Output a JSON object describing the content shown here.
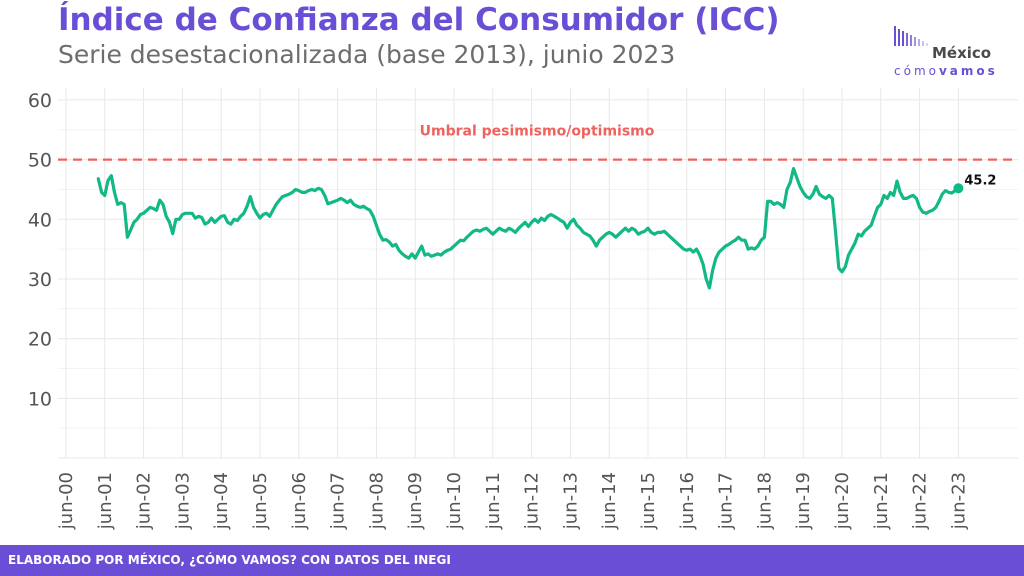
{
  "header": {
    "title": "Índice de Confianza del Consumidor (ICC)",
    "subtitle": "Serie desestacionalizada (base 2013), junio 2023"
  },
  "logo": {
    "main": "México",
    "sub_light": "cómo",
    "sub_bold": "vamos"
  },
  "footer": {
    "text": "ELABORADO POR MÉXICO, ¿CÓMO VAMOS? CON DATOS DEL INEGI"
  },
  "colors": {
    "accent": "#6a4fd6",
    "line": "#12b886",
    "threshold": "#f0625d",
    "grid": "#e8e8e8"
  },
  "chart_data": {
    "type": "line",
    "title": "Índice de Confianza del Consumidor (ICC)",
    "subtitle": "Serie desestacionalizada (base 2013), junio 2023",
    "xlabel": "",
    "ylabel": "",
    "y_ticks": [
      10,
      20,
      30,
      40,
      50,
      60
    ],
    "ylim": [
      0,
      62
    ],
    "x_ticks": [
      "jun-00",
      "jun-01",
      "jun-02",
      "jun-03",
      "jun-04",
      "jun-05",
      "jun-06",
      "jun-07",
      "jun-08",
      "jun-09",
      "jun-10",
      "jun-11",
      "jun-12",
      "jun-13",
      "jun-14",
      "jun-15",
      "jun-16",
      "jun-17",
      "jun-18",
      "jun-19",
      "jun-20",
      "jun-21",
      "jun-22",
      "jun-23"
    ],
    "grid": true,
    "threshold": {
      "value": 50,
      "label": "Umbral pesimismo/optimismo"
    },
    "last_label": "45.2",
    "series": [
      {
        "points": [
          [
            "2001-04",
            46.8
          ],
          [
            "2001-05",
            44.5
          ],
          [
            "2001-06",
            44.0
          ],
          [
            "2001-07",
            46.5
          ],
          [
            "2001-08",
            47.3
          ],
          [
            "2001-09",
            44.5
          ],
          [
            "2001-10",
            42.5
          ],
          [
            "2001-11",
            42.8
          ],
          [
            "2001-12",
            42.5
          ],
          [
            "2002-01",
            37.0
          ],
          [
            "2002-02",
            38.2
          ],
          [
            "2002-03",
            39.5
          ],
          [
            "2002-04",
            40.0
          ],
          [
            "2002-05",
            40.8
          ],
          [
            "2002-06",
            41.0
          ],
          [
            "2002-07",
            41.5
          ],
          [
            "2002-08",
            42.0
          ],
          [
            "2002-09",
            41.8
          ],
          [
            "2002-10",
            41.5
          ],
          [
            "2002-11",
            43.2
          ],
          [
            "2002-12",
            42.5
          ],
          [
            "2003-01",
            40.5
          ],
          [
            "2003-02",
            39.5
          ],
          [
            "2003-03",
            37.6
          ],
          [
            "2003-04",
            40.0
          ],
          [
            "2003-05",
            40.0
          ],
          [
            "2003-06",
            40.8
          ],
          [
            "2003-07",
            41.0
          ],
          [
            "2003-08",
            41.0
          ],
          [
            "2003-09",
            41.0
          ],
          [
            "2003-10",
            40.2
          ],
          [
            "2003-11",
            40.5
          ],
          [
            "2003-12",
            40.3
          ],
          [
            "2004-01",
            39.2
          ],
          [
            "2004-02",
            39.5
          ],
          [
            "2004-03",
            40.2
          ],
          [
            "2004-04",
            39.5
          ],
          [
            "2004-05",
            40.0
          ],
          [
            "2004-06",
            40.5
          ],
          [
            "2004-07",
            40.6
          ],
          [
            "2004-08",
            39.5
          ],
          [
            "2004-09",
            39.2
          ],
          [
            "2004-10",
            40.0
          ],
          [
            "2004-11",
            39.8
          ],
          [
            "2004-12",
            40.5
          ],
          [
            "2005-01",
            41.0
          ],
          [
            "2005-02",
            42.2
          ],
          [
            "2005-03",
            43.8
          ],
          [
            "2005-04",
            42.0
          ],
          [
            "2005-05",
            41.0
          ],
          [
            "2005-06",
            40.2
          ],
          [
            "2005-07",
            40.8
          ],
          [
            "2005-08",
            41.0
          ],
          [
            "2005-09",
            40.5
          ],
          [
            "2005-10",
            41.5
          ],
          [
            "2005-11",
            42.5
          ],
          [
            "2005-12",
            43.2
          ],
          [
            "2006-01",
            43.8
          ],
          [
            "2006-02",
            44.0
          ],
          [
            "2006-03",
            44.2
          ],
          [
            "2006-04",
            44.5
          ],
          [
            "2006-05",
            45.0
          ],
          [
            "2006-06",
            44.8
          ],
          [
            "2006-07",
            44.5
          ],
          [
            "2006-08",
            44.5
          ],
          [
            "2006-09",
            44.8
          ],
          [
            "2006-10",
            45.0
          ],
          [
            "2006-11",
            44.8
          ],
          [
            "2006-12",
            45.2
          ],
          [
            "2007-01",
            45.0
          ],
          [
            "2007-02",
            44.0
          ],
          [
            "2007-03",
            42.6
          ],
          [
            "2007-04",
            42.8
          ],
          [
            "2007-05",
            43.0
          ],
          [
            "2007-06",
            43.2
          ],
          [
            "2007-07",
            43.5
          ],
          [
            "2007-08",
            43.2
          ],
          [
            "2007-09",
            42.8
          ],
          [
            "2007-10",
            43.2
          ],
          [
            "2007-11",
            42.5
          ],
          [
            "2007-12",
            42.2
          ],
          [
            "2008-01",
            42.0
          ],
          [
            "2008-02",
            42.2
          ],
          [
            "2008-03",
            41.8
          ],
          [
            "2008-04",
            41.5
          ],
          [
            "2008-05",
            40.5
          ],
          [
            "2008-06",
            39.0
          ],
          [
            "2008-07",
            37.5
          ],
          [
            "2008-08",
            36.5
          ],
          [
            "2008-09",
            36.6
          ],
          [
            "2008-10",
            36.2
          ],
          [
            "2008-11",
            35.5
          ],
          [
            "2008-12",
            35.8
          ],
          [
            "2009-01",
            34.8
          ],
          [
            "2009-02",
            34.2
          ],
          [
            "2009-03",
            33.8
          ],
          [
            "2009-04",
            33.5
          ],
          [
            "2009-05",
            34.2
          ],
          [
            "2009-06",
            33.5
          ],
          [
            "2009-07",
            34.5
          ],
          [
            "2009-08",
            35.5
          ],
          [
            "2009-09",
            34.0
          ],
          [
            "2009-10",
            34.2
          ],
          [
            "2009-11",
            33.8
          ],
          [
            "2009-12",
            34.0
          ],
          [
            "2010-01",
            34.2
          ],
          [
            "2010-02",
            34.0
          ],
          [
            "2010-03",
            34.5
          ],
          [
            "2010-04",
            34.8
          ],
          [
            "2010-05",
            35.0
          ],
          [
            "2010-06",
            35.5
          ],
          [
            "2010-07",
            36.0
          ],
          [
            "2010-08",
            36.5
          ],
          [
            "2010-09",
            36.4
          ],
          [
            "2010-10",
            37.0
          ],
          [
            "2010-11",
            37.5
          ],
          [
            "2010-12",
            38.0
          ],
          [
            "2011-01",
            38.2
          ],
          [
            "2011-02",
            38.0
          ],
          [
            "2011-03",
            38.3
          ],
          [
            "2011-04",
            38.5
          ],
          [
            "2011-05",
            38.0
          ],
          [
            "2011-06",
            37.5
          ],
          [
            "2011-07",
            38.0
          ],
          [
            "2011-08",
            38.5
          ],
          [
            "2011-09",
            38.2
          ],
          [
            "2011-10",
            38.0
          ],
          [
            "2011-11",
            38.5
          ],
          [
            "2011-12",
            38.2
          ],
          [
            "2012-01",
            37.8
          ],
          [
            "2012-02",
            38.5
          ],
          [
            "2012-03",
            39.0
          ],
          [
            "2012-04",
            39.5
          ],
          [
            "2012-05",
            38.8
          ],
          [
            "2012-06",
            39.5
          ],
          [
            "2012-07",
            40.0
          ],
          [
            "2012-08",
            39.5
          ],
          [
            "2012-09",
            40.2
          ],
          [
            "2012-10",
            39.8
          ],
          [
            "2012-11",
            40.5
          ],
          [
            "2012-12",
            40.8
          ],
          [
            "2013-01",
            40.5
          ],
          [
            "2013-02",
            40.2
          ],
          [
            "2013-03",
            39.8
          ],
          [
            "2013-04",
            39.5
          ],
          [
            "2013-05",
            38.5
          ],
          [
            "2013-06",
            39.5
          ],
          [
            "2013-07",
            40.0
          ],
          [
            "2013-08",
            39.0
          ],
          [
            "2013-09",
            38.5
          ],
          [
            "2013-10",
            37.8
          ],
          [
            "2013-11",
            37.5
          ],
          [
            "2013-12",
            37.2
          ],
          [
            "2014-01",
            36.5
          ],
          [
            "2014-02",
            35.5
          ],
          [
            "2014-03",
            36.5
          ],
          [
            "2014-04",
            37.0
          ],
          [
            "2014-05",
            37.5
          ],
          [
            "2014-06",
            37.8
          ],
          [
            "2014-07",
            37.5
          ],
          [
            "2014-08",
            37.0
          ],
          [
            "2014-09",
            37.5
          ],
          [
            "2014-10",
            38.0
          ],
          [
            "2014-11",
            38.5
          ],
          [
            "2014-12",
            38.0
          ],
          [
            "2015-01",
            38.5
          ],
          [
            "2015-02",
            38.2
          ],
          [
            "2015-03",
            37.5
          ],
          [
            "2015-04",
            37.8
          ],
          [
            "2015-05",
            38.0
          ],
          [
            "2015-06",
            38.5
          ],
          [
            "2015-07",
            37.8
          ],
          [
            "2015-08",
            37.5
          ],
          [
            "2015-09",
            37.8
          ],
          [
            "2015-10",
            37.8
          ],
          [
            "2015-11",
            38.0
          ],
          [
            "2015-12",
            37.5
          ],
          [
            "2016-01",
            37.0
          ],
          [
            "2016-02",
            36.5
          ],
          [
            "2016-03",
            36.0
          ],
          [
            "2016-04",
            35.5
          ],
          [
            "2016-05",
            35.0
          ],
          [
            "2016-06",
            34.8
          ],
          [
            "2016-07",
            35.0
          ],
          [
            "2016-08",
            34.5
          ],
          [
            "2016-09",
            35.0
          ],
          [
            "2016-10",
            34.0
          ],
          [
            "2016-11",
            32.5
          ],
          [
            "2016-12",
            30.0
          ],
          [
            "2017-01",
            28.5
          ],
          [
            "2017-02",
            31.5
          ],
          [
            "2017-03",
            33.5
          ],
          [
            "2017-04",
            34.5
          ],
          [
            "2017-05",
            35.0
          ],
          [
            "2017-06",
            35.5
          ],
          [
            "2017-07",
            35.8
          ],
          [
            "2017-08",
            36.2
          ],
          [
            "2017-09",
            36.5
          ],
          [
            "2017-10",
            37.0
          ],
          [
            "2017-11",
            36.5
          ],
          [
            "2017-12",
            36.5
          ],
          [
            "2018-01",
            35.0
          ],
          [
            "2018-02",
            35.2
          ],
          [
            "2018-03",
            35.0
          ],
          [
            "2018-04",
            35.5
          ],
          [
            "2018-05",
            36.5
          ],
          [
            "2018-06",
            37.0
          ],
          [
            "2018-07",
            43.0
          ],
          [
            "2018-08",
            43.0
          ],
          [
            "2018-09",
            42.5
          ],
          [
            "2018-10",
            42.8
          ],
          [
            "2018-11",
            42.5
          ],
          [
            "2018-12",
            42.0
          ],
          [
            "2019-01",
            45.0
          ],
          [
            "2019-02",
            46.2
          ],
          [
            "2019-03",
            48.5
          ],
          [
            "2019-04",
            47.0
          ],
          [
            "2019-05",
            45.5
          ],
          [
            "2019-06",
            44.5
          ],
          [
            "2019-07",
            43.8
          ],
          [
            "2019-08",
            43.5
          ],
          [
            "2019-09",
            44.2
          ],
          [
            "2019-10",
            45.5
          ],
          [
            "2019-11",
            44.2
          ],
          [
            "2019-12",
            43.8
          ],
          [
            "2020-01",
            43.5
          ],
          [
            "2020-02",
            44.0
          ],
          [
            "2020-03",
            43.5
          ],
          [
            "2020-04",
            38.0
          ],
          [
            "2020-05",
            31.8
          ],
          [
            "2020-06",
            31.2
          ],
          [
            "2020-07",
            32.0
          ],
          [
            "2020-08",
            34.0
          ],
          [
            "2020-09",
            35.0
          ],
          [
            "2020-10",
            36.0
          ],
          [
            "2020-11",
            37.5
          ],
          [
            "2020-12",
            37.2
          ],
          [
            "2021-01",
            38.0
          ],
          [
            "2021-02",
            38.5
          ],
          [
            "2021-03",
            39.0
          ],
          [
            "2021-04",
            40.5
          ],
          [
            "2021-05",
            42.0
          ],
          [
            "2021-06",
            42.5
          ],
          [
            "2021-07",
            44.0
          ],
          [
            "2021-08",
            43.5
          ],
          [
            "2021-09",
            44.5
          ],
          [
            "2021-10",
            44.0
          ],
          [
            "2021-11",
            46.4
          ],
          [
            "2021-12",
            44.5
          ],
          [
            "2022-01",
            43.5
          ],
          [
            "2022-02",
            43.5
          ],
          [
            "2022-03",
            43.8
          ],
          [
            "2022-04",
            44.0
          ],
          [
            "2022-05",
            43.5
          ],
          [
            "2022-06",
            42.0
          ],
          [
            "2022-07",
            41.2
          ],
          [
            "2022-08",
            41.0
          ],
          [
            "2022-09",
            41.3
          ],
          [
            "2022-10",
            41.5
          ],
          [
            "2022-11",
            42.0
          ],
          [
            "2022-12",
            43.0
          ],
          [
            "2023-01",
            44.2
          ],
          [
            "2023-02",
            44.8
          ],
          [
            "2023-03",
            44.5
          ],
          [
            "2023-04",
            44.4
          ],
          [
            "2023-05",
            44.8
          ],
          [
            "2023-06",
            45.2
          ]
        ]
      }
    ]
  }
}
